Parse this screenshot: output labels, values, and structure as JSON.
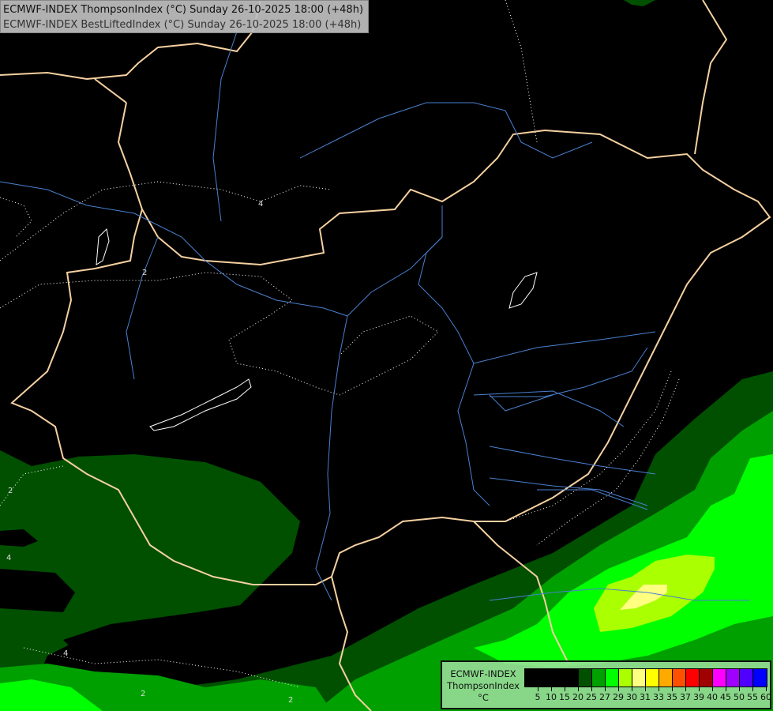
{
  "header": {
    "line1": "ECMWF-INDEX ThompsonIndex (°C) Sunday 26-10-2025 18:00 (+48h)",
    "line2": "ECMWF-INDEX BestLiftedIndex (°C) Sunday 26-10-2025 18:00 (+48h)"
  },
  "legend": {
    "model": "ECMWF-INDEX",
    "parameter": "ThompsonIndex",
    "unit": "°C",
    "bins": [
      {
        "label": "5",
        "color": "#000000"
      },
      {
        "label": "10",
        "color": "#000000"
      },
      {
        "label": "15",
        "color": "#000000"
      },
      {
        "label": "20",
        "color": "#000000"
      },
      {
        "label": "25",
        "color": "#005000"
      },
      {
        "label": "27",
        "color": "#00a000"
      },
      {
        "label": "29",
        "color": "#00ff00"
      },
      {
        "label": "30",
        "color": "#aaff00"
      },
      {
        "label": "31",
        "color": "#ffff80"
      },
      {
        "label": "33",
        "color": "#ffff00"
      },
      {
        "label": "35",
        "color": "#ffaa00"
      },
      {
        "label": "37",
        "color": "#ff5000"
      },
      {
        "label": "39",
        "color": "#ff0000"
      },
      {
        "label": "40",
        "color": "#a00000"
      },
      {
        "label": "45",
        "color": "#ff00ff"
      },
      {
        "label": "50",
        "color": "#a000ff"
      },
      {
        "label": "55",
        "color": "#5000ff"
      },
      {
        "label": "60",
        "color": "#0000ff"
      }
    ]
  },
  "contour_labels": [
    "4",
    "2",
    "2",
    "4",
    "4",
    "2",
    "2"
  ],
  "colors": {
    "border": "#f5d0a0",
    "river": "#4a80d0",
    "contour": "#ffffff"
  }
}
